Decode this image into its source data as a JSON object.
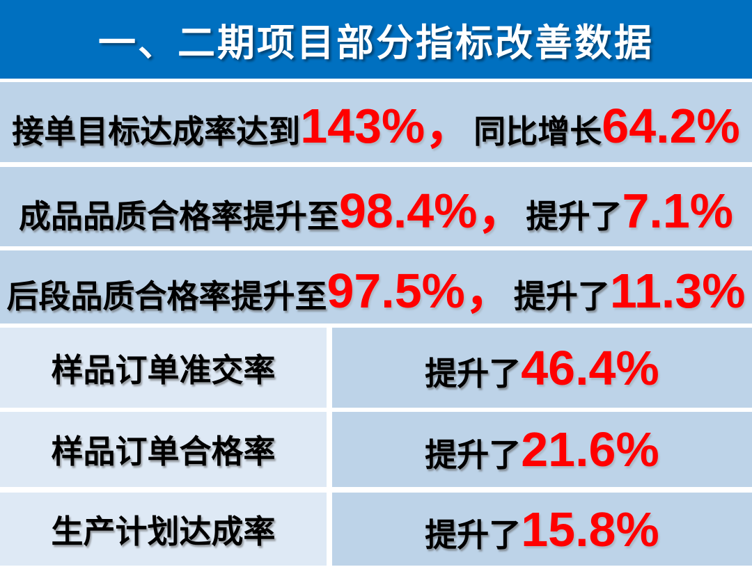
{
  "title": "一、二期项目部分指标改善数据",
  "colors": {
    "header_bg": "#0070C0",
    "band_bg": "#BDD3E8",
    "label_cell_bg": "#DEE9F5",
    "accent_red": "#FF0000",
    "text_black": "#000000",
    "title_text": "#FFFFFF",
    "page_bg": "#FFFFFF"
  },
  "rows": [
    {
      "black1": "接单目标达成率达到",
      "red1": "143%，",
      "black2": "同比增长",
      "red2": "64.2%"
    },
    {
      "black1": "成品品质合格率提升至",
      "red1": "98.4%，",
      "black2": "提升了",
      "red2": "7.1%"
    },
    {
      "black1": "后段品质合格率提升至",
      "red1": "97.5%，",
      "black2": "提升了",
      "red2": "11.3%"
    }
  ],
  "split_rows": [
    {
      "label": "样品订单准交率",
      "prefix": "提升了",
      "value": "46.4%"
    },
    {
      "label": "样品订单合格率",
      "prefix": "提升了",
      "value": "21.6%"
    },
    {
      "label": "生产计划达成率",
      "prefix": "提升了",
      "value": "15.8%"
    }
  ]
}
